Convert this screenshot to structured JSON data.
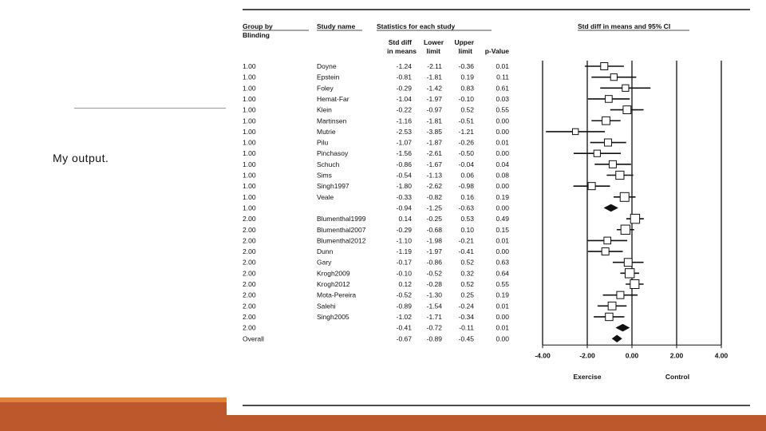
{
  "slide": {
    "caption": "My output.",
    "accent_color": "#BD582C",
    "accent_top_color": "#E0843A"
  },
  "chart_data": {
    "type": "forest",
    "headers": {
      "group": [
        "Group by",
        "Blinding"
      ],
      "study": "Study name",
      "stats": "Statistics for each study",
      "std": [
        "Std diff",
        "in means"
      ],
      "lower": [
        "Lower",
        "limit"
      ],
      "upper": [
        "Upper",
        "limit"
      ],
      "p": "p-Value",
      "ci": "Std diff in means and 95% CI"
    },
    "x_axis": {
      "ticks": [
        -4,
        -2,
        0,
        2,
        4
      ],
      "tick_labels": [
        "-4.00",
        "-2.00",
        "0.00",
        "2.00",
        "4.00"
      ],
      "range": [
        -4,
        4
      ]
    },
    "favours": {
      "left": "Exercise",
      "right": "Control"
    },
    "rows": [
      {
        "group": "1.00",
        "study": "Doyne",
        "std": "-1.24",
        "lower": "-2.11",
        "upper": "-0.36",
        "p": "0.01",
        "kind": "study",
        "w": 0.5
      },
      {
        "group": "1.00",
        "study": "Epstein",
        "std": "-0.81",
        "lower": "-1.81",
        "upper": "0.19",
        "p": "0.11",
        "kind": "study",
        "w": 0.4
      },
      {
        "group": "1.00",
        "study": "Foley",
        "std": "-0.29",
        "lower": "-1.42",
        "upper": "0.83",
        "p": "0.61",
        "kind": "study",
        "w": 0.4
      },
      {
        "group": "1.00",
        "study": "Hemat-Far",
        "std": "-1.04",
        "lower": "-1.97",
        "upper": "-0.10",
        "p": "0.03",
        "kind": "study",
        "w": 0.45
      },
      {
        "group": "1.00",
        "study": "Klein",
        "std": "-0.22",
        "lower": "-0.97",
        "upper": "0.52",
        "p": "0.55",
        "kind": "study",
        "w": 0.6
      },
      {
        "group": "1.00",
        "study": "Martinsen",
        "std": "-1.16",
        "lower": "-1.81",
        "upper": "-0.51",
        "p": "0.00",
        "kind": "study",
        "w": 0.6
      },
      {
        "group": "1.00",
        "study": "Mutrie",
        "std": "-2.53",
        "lower": "-3.85",
        "upper": "-1.21",
        "p": "0.00",
        "kind": "study",
        "w": 0.3
      },
      {
        "group": "1.00",
        "study": "Pilu",
        "std": "-1.07",
        "lower": "-1.87",
        "upper": "-0.26",
        "p": "0.01",
        "kind": "study",
        "w": 0.5
      },
      {
        "group": "1.00",
        "study": "Pinchasoy",
        "std": "-1.56",
        "lower": "-2.61",
        "upper": "-0.50",
        "p": "0.00",
        "kind": "study",
        "w": 0.4
      },
      {
        "group": "1.00",
        "study": "Schuch",
        "std": "-0.86",
        "lower": "-1.67",
        "upper": "-0.04",
        "p": "0.04",
        "kind": "study",
        "w": 0.5
      },
      {
        "group": "1.00",
        "study": "Sims",
        "std": "-0.54",
        "lower": "-1.13",
        "upper": "0.06",
        "p": "0.08",
        "kind": "study",
        "w": 0.65
      },
      {
        "group": "1.00",
        "study": "Singh1997",
        "std": "-1.80",
        "lower": "-2.62",
        "upper": "-0.98",
        "p": "0.00",
        "kind": "study",
        "w": 0.5
      },
      {
        "group": "1.00",
        "study": "Veale",
        "std": "-0.33",
        "lower": "-0.82",
        "upper": "0.16",
        "p": "0.19",
        "kind": "study",
        "w": 0.75
      },
      {
        "group": "1.00",
        "study": "",
        "std": "-0.94",
        "lower": "-1.25",
        "upper": "-0.63",
        "p": "0.00",
        "kind": "summary"
      },
      {
        "group": "2.00",
        "study": "Blumenthal1999",
        "std": "0.14",
        "lower": "-0.25",
        "upper": "0.53",
        "p": "0.49",
        "kind": "study",
        "w": 0.8
      },
      {
        "group": "2.00",
        "study": "Blumenthal2007",
        "std": "-0.29",
        "lower": "-0.68",
        "upper": "0.10",
        "p": "0.15",
        "kind": "study",
        "w": 0.8
      },
      {
        "group": "2.00",
        "study": "Blumenthal2012",
        "std": "-1.10",
        "lower": "-1.98",
        "upper": "-0.21",
        "p": "0.01",
        "kind": "study",
        "w": 0.45
      },
      {
        "group": "2.00",
        "study": "Dunn",
        "std": "-1.19",
        "lower": "-1.97",
        "upper": "-0.41",
        "p": "0.00",
        "kind": "study",
        "w": 0.5
      },
      {
        "group": "2.00",
        "study": "Gary",
        "std": "-0.17",
        "lower": "-0.86",
        "upper": "0.52",
        "p": "0.63",
        "kind": "study",
        "w": 0.6
      },
      {
        "group": "2.00",
        "study": "Krogh2009",
        "std": "-0.10",
        "lower": "-0.52",
        "upper": "0.32",
        "p": "0.64",
        "kind": "study",
        "w": 0.8
      },
      {
        "group": "2.00",
        "study": "Krogh2012",
        "std": "0.12",
        "lower": "-0.28",
        "upper": "0.52",
        "p": "0.55",
        "kind": "study",
        "w": 0.75
      },
      {
        "group": "2.00",
        "study": "Mota-Pereira",
        "std": "-0.52",
        "lower": "-1.30",
        "upper": "0.25",
        "p": "0.19",
        "kind": "study",
        "w": 0.5
      },
      {
        "group": "2.00",
        "study": "Salehi",
        "std": "-0.89",
        "lower": "-1.54",
        "upper": "-0.24",
        "p": "0.01",
        "kind": "study",
        "w": 0.6
      },
      {
        "group": "2.00",
        "study": "Singh2005",
        "std": "-1.02",
        "lower": "-1.71",
        "upper": "-0.34",
        "p": "0.00",
        "kind": "study",
        "w": 0.55
      },
      {
        "group": "2.00",
        "study": "",
        "std": "-0.41",
        "lower": "-0.72",
        "upper": "-0.11",
        "p": "0.01",
        "kind": "summary"
      },
      {
        "group": "Overall",
        "study": "",
        "std": "-0.67",
        "lower": "-0.89",
        "upper": "-0.45",
        "p": "0.00",
        "kind": "summary"
      }
    ]
  }
}
